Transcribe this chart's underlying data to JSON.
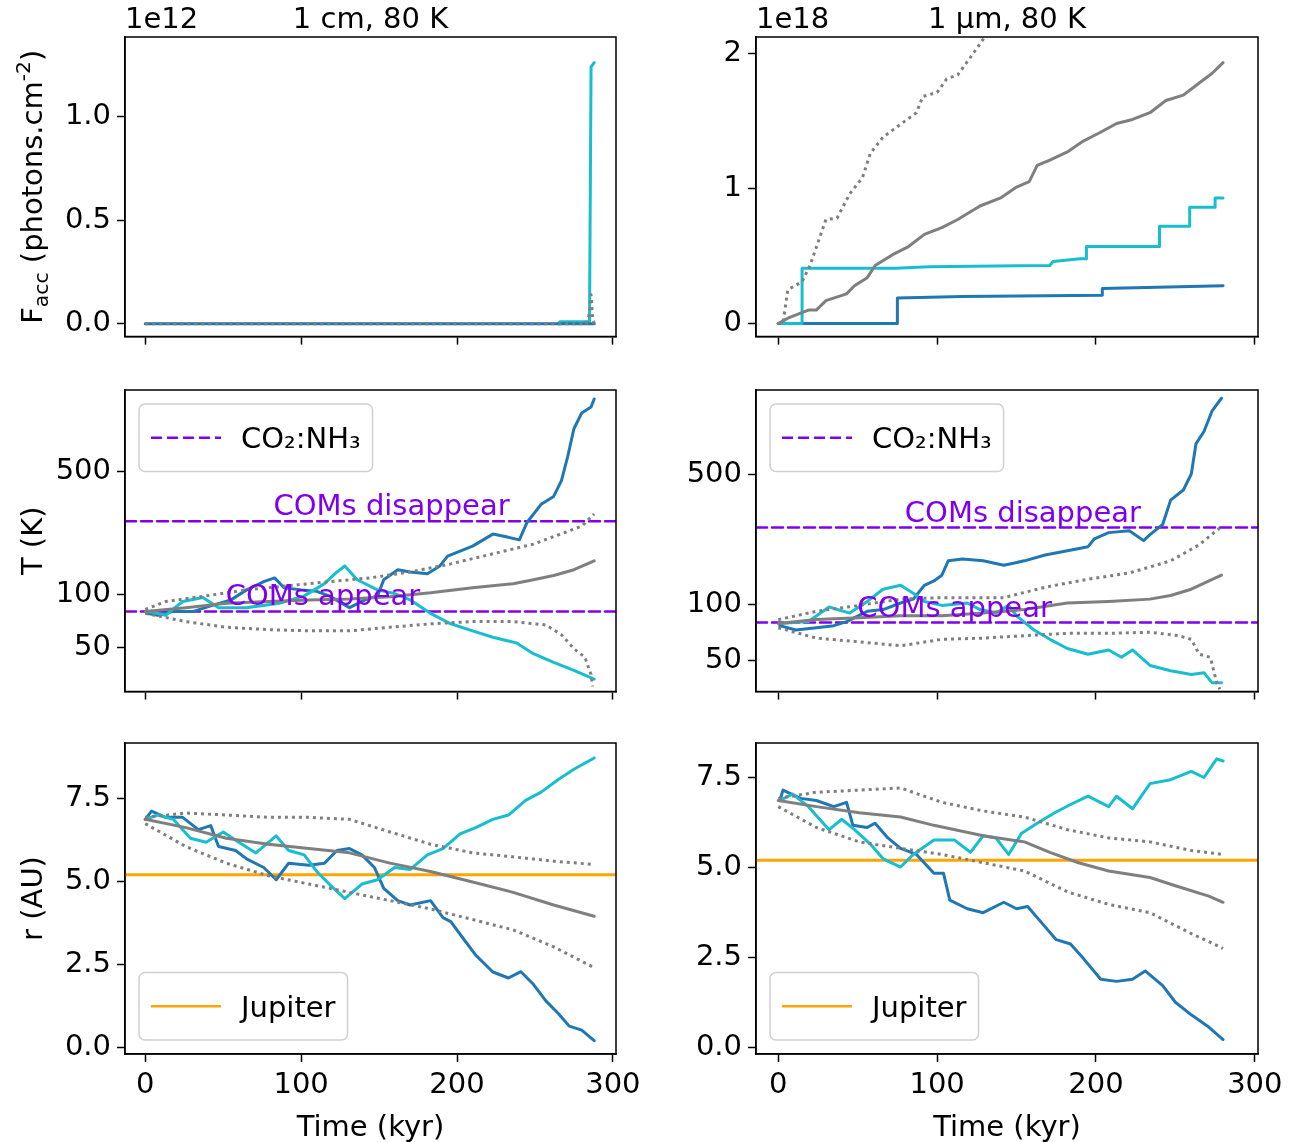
{
  "chart_data": [
    {
      "type": "line",
      "title": "1 cm, 80 K",
      "ylabel": "F$_{acc}$ (photons.cm$^{-2}$)",
      "annotations": [
        "1e12"
      ],
      "xlim": [
        -13,
        302
      ],
      "xticks": [
        0,
        100,
        200,
        300
      ],
      "ylim": [
        -0.062,
        1.384
      ],
      "yticks": [
        {
          "value": 0,
          "label": "0.0"
        },
        {
          "value": 0.5,
          "label": "0.5"
        },
        {
          "value": 1,
          "label": "1.0"
        }
      ],
      "tick_labels": "y",
      "series": [
        {
          "color": "#7f7f7f",
          "line_style": "dotted",
          "x": [
            0,
            283,
            285,
            286,
            287,
            288
          ],
          "values": [
            0,
            0,
            0.05,
            0.14,
            0.03,
            0
          ]
        },
        {
          "color": "#1f77b4",
          "x": [
            0,
            288
          ],
          "values": [
            0,
            0
          ]
        },
        {
          "color": "#17becf",
          "x": [
            265,
            266,
            285,
            286,
            288
          ],
          "values": [
            0,
            0.01,
            0.01,
            1.24,
            1.26
          ]
        }
      ]
    },
    {
      "type": "line",
      "title": "1 μm, 80 K",
      "annotations": [
        "1e18"
      ],
      "xlim": [
        -14,
        302
      ],
      "xticks": [
        0,
        100,
        200,
        300
      ],
      "ylim": [
        -0.096,
        2.12
      ],
      "yticks": [
        0,
        1,
        2
      ],
      "tick_labels": "y",
      "series": [
        {
          "color": "#7f7f7f",
          "line_style": "dotted",
          "x": [
            0,
            3,
            6,
            15,
            20,
            30,
            37,
            45,
            53,
            58,
            66,
            73,
            87,
            91,
            100,
            106,
            113,
            121,
            130
          ],
          "values": [
            0,
            0,
            0.25,
            0.31,
            0.43,
            0.77,
            0.78,
            0.96,
            1.08,
            1.26,
            1.38,
            1.44,
            1.56,
            1.68,
            1.71,
            1.81,
            1.84,
            1.97,
            2.12
          ]
        },
        {
          "color": "#7f7f7f",
          "x": [
            0,
            6,
            19,
            24,
            30,
            43,
            48,
            56,
            61,
            72,
            82,
            92,
            103,
            113,
            127,
            140,
            150,
            158,
            163,
            171,
            182,
            192,
            202,
            213,
            223,
            234,
            244,
            255,
            265,
            273,
            280
          ],
          "values": [
            0,
            0.04,
            0.1,
            0.1,
            0.17,
            0.22,
            0.28,
            0.34,
            0.43,
            0.51,
            0.57,
            0.66,
            0.71,
            0.77,
            0.87,
            0.93,
            1.01,
            1.05,
            1.17,
            1.21,
            1.27,
            1.35,
            1.41,
            1.48,
            1.51,
            1.56,
            1.65,
            1.69,
            1.78,
            1.85,
            1.93
          ]
        },
        {
          "color": "#17becf",
          "x": [
            0,
            15,
            15,
            74,
            95,
            171,
            173,
            190,
            194,
            194,
            240,
            240,
            259,
            259,
            275,
            275,
            280
          ],
          "values": [
            0,
            0,
            0.41,
            0.41,
            0.42,
            0.43,
            0.46,
            0.48,
            0.48,
            0.57,
            0.57,
            0.72,
            0.72,
            0.86,
            0.86,
            0.93,
            0.93
          ]
        },
        {
          "color": "#1f77b4",
          "x": [
            0,
            75,
            75,
            116,
            204,
            204,
            280
          ],
          "values": [
            0,
            0,
            0.19,
            0.2,
            0.21,
            0.26,
            0.28
          ]
        }
      ]
    },
    {
      "type": "line",
      "ylabel": "T (K)",
      "log": true,
      "xlim": [
        -13,
        302
      ],
      "xticks": [
        0,
        100,
        200,
        300
      ],
      "ylim": [
        28,
        1450
      ],
      "yticks": [
        50,
        100,
        500
      ],
      "tick_labels": "y",
      "legend": "top left",
      "annotations": [
        {
          "text": "COMs appear",
          "x": 114,
          "y": 80
        },
        {
          "text": "COMs disappear",
          "x": 158,
          "y": 260
        }
      ],
      "series": [
        {
          "color": "#7f7f7f",
          "line_style": "dotted",
          "x": [
            0,
            13,
            39,
            65,
            92,
            118,
            144,
            170,
            196,
            223,
            249,
            270,
            280,
            288
          ],
          "values": [
            82,
            91,
            98,
            106,
            112,
            118,
            124,
            134,
            149,
            170,
            193,
            226,
            244,
            286
          ]
        },
        {
          "color": "#7f7f7f",
          "line_style": "dotted",
          "x": [
            0,
            26,
            52,
            79,
            105,
            131,
            157,
            183,
            210,
            236,
            257,
            267,
            275,
            282,
            286,
            287
          ],
          "values": [
            78,
            70,
            65,
            63,
            62,
            62,
            65,
            68,
            70,
            70,
            67,
            59,
            49,
            44,
            35,
            30
          ]
        },
        {
          "color": "#7f7f7f",
          "x": [
            0,
            26,
            52,
            79,
            105,
            131,
            157,
            183,
            210,
            236,
            249,
            262,
            275,
            288
          ],
          "values": [
            80,
            84,
            89,
            91,
            93,
            94,
            97,
            102,
            109,
            115,
            121,
            128,
            138,
            155
          ]
        },
        {
          "color": "#17becf",
          "x": [
            1,
            13,
            24,
            37,
            47,
            65,
            86,
            102,
            115,
            123,
            128,
            136,
            149,
            160,
            170,
            183,
            196,
            210,
            223,
            238,
            249,
            262,
            275,
            288
          ],
          "values": [
            80,
            76,
            91,
            96,
            84,
            84,
            89,
            98,
            115,
            134,
            145,
            121,
            106,
            101,
            93,
            78,
            68,
            62,
            57,
            53,
            46,
            41,
            37,
            33
          ]
        },
        {
          "color": "#1f77b4",
          "x": [
            1,
            8,
            18,
            31,
            42,
            55,
            65,
            76,
            83,
            89,
            100,
            110,
            118,
            131,
            141,
            149,
            153,
            162,
            170,
            181,
            189,
            194,
            210,
            223,
            230,
            240,
            245,
            254,
            262,
            267,
            271,
            275,
            280,
            286,
            288
          ],
          "values": [
            78,
            76,
            80,
            80,
            86,
            93,
            106,
            118,
            124,
            109,
            106,
            104,
            98,
            84,
            93,
            98,
            121,
            138,
            134,
            131,
            145,
            165,
            188,
            220,
            214,
            204,
            257,
            325,
            360,
            443,
            606,
            873,
            1073,
            1160,
            1290
          ]
        },
        {
          "name": "CO₂:NH₃",
          "color": "#8000ee",
          "line_style": "dashed",
          "x": [
            -13,
            302
          ],
          "values": [
            80,
            80
          ]
        },
        {
          "color": "#8000ee",
          "line_style": "dashed",
          "x": [
            -13,
            302
          ],
          "values": [
            260,
            260
          ]
        }
      ]
    },
    {
      "type": "line",
      "log": true,
      "xlim": [
        -14,
        302
      ],
      "xticks": [
        0,
        100,
        200,
        300
      ],
      "ylim": [
        34,
        1430
      ],
      "yticks": [
        50,
        100,
        500
      ],
      "tick_labels": "y",
      "legend": "top left",
      "annotations": [
        {
          "text": "COMs appear",
          "x": 111,
          "y": 80
        },
        {
          "text": "COMs disappear",
          "x": 154,
          "y": 260
        }
      ],
      "series": [
        {
          "color": "#7f7f7f",
          "line_style": "dotted",
          "x": [
            0,
            24,
            51,
            77,
            103,
            129,
            142,
            168,
            195,
            221,
            247,
            265,
            279
          ],
          "values": [
            83,
            92,
            99,
            107,
            109,
            109,
            109,
            124,
            137,
            148,
            172,
            210,
            263
          ]
        },
        {
          "color": "#7f7f7f",
          "line_style": "dotted",
          "x": [
            0,
            24,
            51,
            77,
            103,
            129,
            155,
            182,
            208,
            234,
            252,
            260,
            265,
            272,
            276,
            278
          ],
          "values": [
            75,
            66,
            63,
            60,
            65,
            66,
            68,
            70,
            70,
            71,
            68,
            65,
            54,
            52,
            38,
            35
          ]
        },
        {
          "color": "#7f7f7f",
          "x": [
            0,
            24,
            51,
            77,
            103,
            129,
            155,
            182,
            208,
            234,
            247,
            260,
            279
          ],
          "values": [
            79,
            83,
            85,
            87,
            87,
            90,
            94,
            102,
            104,
            107,
            112,
            121,
            144
          ]
        },
        {
          "color": "#17becf",
          "x": [
            1,
            19,
            32,
            45,
            56,
            66,
            77,
            85,
            92,
            103,
            119,
            127,
            137,
            145,
            150,
            161,
            171,
            182,
            195,
            208,
            216,
            223,
            234,
            247,
            260,
            268,
            273,
            279
          ],
          "values": [
            79,
            81,
            97,
            90,
            104,
            121,
            127,
            115,
            104,
            99,
            102,
            94,
            90,
            99,
            87,
            73,
            65,
            58,
            54,
            57,
            52,
            57,
            47,
            44,
            42,
            43,
            38,
            38
          ]
        },
        {
          "color": "#1f77b4",
          "x": [
            1,
            11,
            24,
            35,
            43,
            56,
            66,
            77,
            85,
            92,
            98,
            103,
            107,
            116,
            129,
            142,
            155,
            168,
            182,
            195,
            199,
            208,
            221,
            230,
            234,
            242,
            247,
            255,
            260,
            263,
            268,
            273,
            279
          ],
          "values": [
            77,
            73,
            75,
            77,
            81,
            92,
            94,
            102,
            107,
            127,
            134,
            144,
            172,
            176,
            172,
            163,
            172,
            185,
            195,
            205,
            226,
            244,
            250,
            221,
            238,
            270,
            365,
            414,
            505,
            736,
            855,
            1099,
            1291
          ]
        },
        {
          "name": "CO₂:NH₃",
          "color": "#8000ee",
          "line_style": "dashed",
          "x": [
            -14,
            302
          ],
          "values": [
            80,
            80
          ]
        },
        {
          "color": "#8000ee",
          "line_style": "dashed",
          "x": [
            -14,
            302
          ],
          "values": [
            260,
            260
          ]
        }
      ]
    },
    {
      "type": "line",
      "ylabel": "r (AU)",
      "xlabel": "Time (kyr)",
      "xlim": [
        -13,
        302
      ],
      "xticks": [
        0,
        100,
        200,
        300
      ],
      "ylim": [
        -0.2,
        9.17
      ],
      "yticks": [
        {
          "value": 0,
          "label": "0.0"
        },
        2.5,
        {
          "value": 5,
          "label": "5.0"
        },
        7.5
      ],
      "legend": "bottom left",
      "series": [
        {
          "color": "#7f7f7f",
          "line_style": "dotted",
          "x": [
            0,
            26,
            52,
            79,
            105,
            131,
            157,
            183,
            210,
            236,
            262,
            288
          ],
          "values": [
            6.93,
            7.06,
            7.0,
            6.93,
            6.93,
            6.87,
            6.49,
            6.12,
            5.86,
            5.74,
            5.61,
            5.51
          ]
        },
        {
          "color": "#7f7f7f",
          "line_style": "dotted",
          "x": [
            0,
            26,
            52,
            79,
            105,
            131,
            157,
            183,
            210,
            236,
            262,
            288
          ],
          "values": [
            6.74,
            6.05,
            5.55,
            5.17,
            4.92,
            4.67,
            4.42,
            4.17,
            3.85,
            3.54,
            3.03,
            2.4
          ]
        },
        {
          "color": "#7f7f7f",
          "x": [
            0,
            26,
            52,
            79,
            105,
            131,
            157,
            183,
            210,
            236,
            262,
            288
          ],
          "values": [
            6.87,
            6.62,
            6.3,
            6.12,
            5.99,
            5.86,
            5.55,
            5.3,
            4.98,
            4.67,
            4.29,
            3.95
          ]
        },
        {
          "color": "#17becf",
          "x": [
            0,
            8,
            18,
            29,
            39,
            50,
            60,
            71,
            84,
            92,
            102,
            110,
            118,
            128,
            139,
            149,
            160,
            170,
            181,
            191,
            202,
            212,
            223,
            233,
            244,
            254,
            265,
            275,
            288
          ],
          "values": [
            6.87,
            7.0,
            6.87,
            6.3,
            6.18,
            6.49,
            6.18,
            5.86,
            6.37,
            5.93,
            5.8,
            5.3,
            4.92,
            4.48,
            4.92,
            5.05,
            5.42,
            5.36,
            5.8,
            5.99,
            6.43,
            6.62,
            6.87,
            7.0,
            7.44,
            7.69,
            8.07,
            8.38,
            8.72
          ]
        },
        {
          "color": "#1f77b4",
          "x": [
            0,
            4,
            13,
            24,
            34,
            42,
            47,
            58,
            65,
            76,
            84,
            92,
            105,
            115,
            123,
            131,
            139,
            147,
            153,
            162,
            170,
            183,
            191,
            196,
            204,
            212,
            223,
            233,
            241,
            249,
            257,
            265,
            272,
            280,
            288
          ],
          "values": [
            6.87,
            7.12,
            6.93,
            6.93,
            6.56,
            6.68,
            6.05,
            5.93,
            5.68,
            5.42,
            5.05,
            5.55,
            5.49,
            5.55,
            5.93,
            5.99,
            5.8,
            5.42,
            4.79,
            4.42,
            4.29,
            4.42,
            3.91,
            3.79,
            3.28,
            2.78,
            2.27,
            2.09,
            2.28,
            1.9,
            1.4,
            1.02,
            0.64,
            0.52,
            0.2
          ]
        },
        {
          "name": "Jupiter",
          "color": "#ffa500",
          "x": [
            -13,
            302
          ],
          "values": [
            5.2,
            5.2
          ]
        }
      ]
    },
    {
      "type": "line",
      "xlabel": "Time (kyr)",
      "xlim": [
        -14,
        302
      ],
      "xticks": [
        0,
        100,
        200,
        300
      ],
      "ylim": [
        -0.19,
        8.46
      ],
      "yticks": [
        {
          "value": 0,
          "label": "0.0"
        },
        2.5,
        {
          "value": 5,
          "label": "5.0"
        },
        7.5
      ],
      "legend": "bottom left",
      "series": [
        {
          "color": "#7f7f7f",
          "line_style": "dotted",
          "x": [
            0,
            24,
            51,
            77,
            103,
            129,
            155,
            182,
            208,
            234,
            260,
            280
          ],
          "values": [
            6.92,
            7.09,
            7.15,
            7.21,
            6.81,
            6.57,
            6.4,
            6.05,
            5.82,
            5.71,
            5.47,
            5.36
          ]
        },
        {
          "color": "#7f7f7f",
          "line_style": "dotted",
          "x": [
            0,
            24,
            51,
            77,
            103,
            129,
            155,
            182,
            208,
            234,
            260,
            280
          ],
          "values": [
            6.69,
            6.11,
            5.71,
            5.53,
            5.36,
            5.13,
            4.9,
            4.32,
            3.97,
            3.74,
            3.16,
            2.75
          ]
        },
        {
          "color": "#7f7f7f",
          "x": [
            0,
            24,
            51,
            77,
            98,
            129,
            155,
            171,
            189,
            208,
            234,
            250,
            271,
            280
          ],
          "values": [
            6.86,
            6.69,
            6.52,
            6.4,
            6.17,
            5.88,
            5.71,
            5.42,
            5.13,
            4.9,
            4.72,
            4.49,
            4.2,
            4.03
          ]
        },
        {
          "color": "#17becf",
          "x": [
            1,
            9,
            19,
            32,
            40,
            48,
            58,
            66,
            77,
            85,
            98,
            111,
            121,
            129,
            137,
            145,
            153,
            163,
            174,
            184,
            195,
            208,
            213,
            223,
            234,
            247,
            260,
            268,
            276,
            280
          ],
          "values": [
            6.86,
            7.04,
            6.69,
            6.05,
            6.34,
            6.05,
            5.65,
            5.24,
            5.01,
            5.36,
            5.76,
            5.76,
            5.42,
            5.88,
            5.82,
            5.36,
            5.94,
            6.23,
            6.52,
            6.75,
            6.98,
            6.69,
            6.98,
            6.63,
            7.33,
            7.44,
            7.67,
            7.5,
            8.02,
            7.96
          ]
        },
        {
          "color": "#1f77b4",
          "x": [
            1,
            3,
            14,
            24,
            35,
            43,
            47,
            56,
            61,
            69,
            77,
            87,
            98,
            104,
            108,
            119,
            129,
            142,
            150,
            157,
            166,
            175,
            184,
            192,
            203,
            213,
            223,
            231,
            242,
            250,
            260,
            271,
            280
          ],
          "values": [
            6.86,
            7.15,
            6.92,
            6.86,
            6.69,
            6.81,
            6.17,
            6.11,
            6.23,
            5.82,
            5.53,
            5.36,
            4.84,
            4.84,
            4.09,
            3.85,
            3.74,
            4.03,
            3.85,
            3.91,
            3.45,
            2.99,
            2.87,
            2.47,
            1.89,
            1.83,
            1.89,
            2.12,
            1.71,
            1.25,
            0.9,
            0.56,
            0.21
          ]
        },
        {
          "name": "Jupiter",
          "color": "#ffa500",
          "x": [
            -14,
            302
          ],
          "values": [
            5.2,
            5.2
          ]
        }
      ]
    }
  ]
}
